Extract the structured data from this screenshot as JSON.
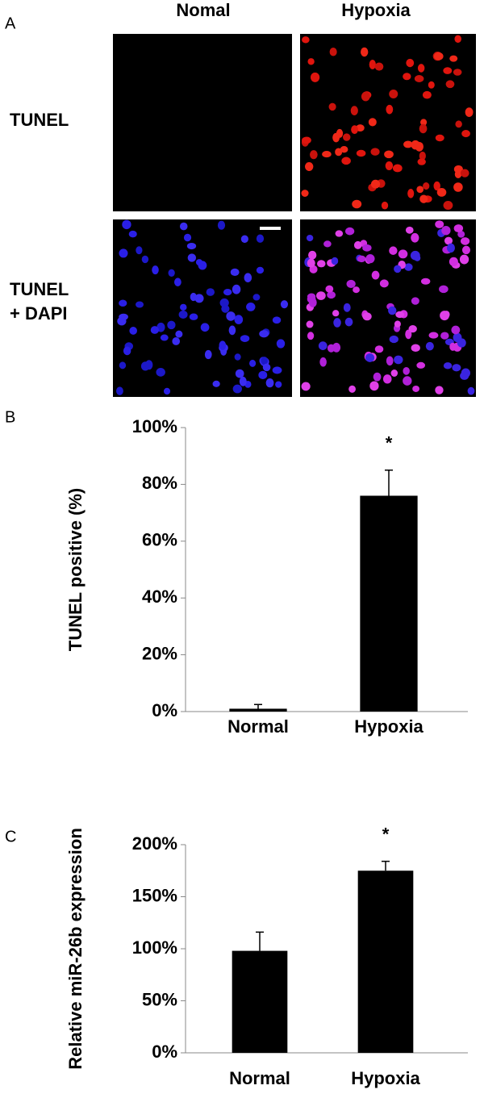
{
  "panel_a": {
    "label": "A",
    "columns": [
      "Nomal",
      "Hypoxia"
    ],
    "rows": [
      [
        "TUNEL"
      ],
      [
        "TUNEL",
        "+ DAPI"
      ]
    ]
  },
  "chart_data": [
    {
      "type": "bar",
      "panel": "B",
      "ylabel": "TUNEL positive (%)",
      "categories": [
        "Normal",
        "Hypoxia"
      ],
      "values": [
        1,
        76
      ],
      "errors": [
        1.5,
        9
      ],
      "color": "#000000",
      "ylim": [
        0,
        100
      ],
      "yticks": [
        {
          "value": 0,
          "label": "0%"
        },
        {
          "value": 20,
          "label": "20%"
        },
        {
          "value": 40,
          "label": "40%"
        },
        {
          "value": 60,
          "label": "60%"
        },
        {
          "value": 80,
          "label": "80%"
        },
        {
          "value": 100,
          "label": "100%"
        }
      ],
      "annotation": "*",
      "grid": false
    },
    {
      "type": "bar",
      "panel": "C",
      "ylabel": "Relative miR-26b expression",
      "categories": [
        "Normal",
        "Hypoxia"
      ],
      "values": [
        98,
        175
      ],
      "errors": [
        18,
        9
      ],
      "color": "#000000",
      "ylim": [
        0,
        200
      ],
      "yticks": [
        {
          "value": 0,
          "label": "0%"
        },
        {
          "value": 50,
          "label": "50%"
        },
        {
          "value": 100,
          "label": "100%"
        },
        {
          "value": 150,
          "label": "150%"
        },
        {
          "value": 200,
          "label": "200%"
        }
      ],
      "annotation": "*",
      "grid": false
    }
  ]
}
